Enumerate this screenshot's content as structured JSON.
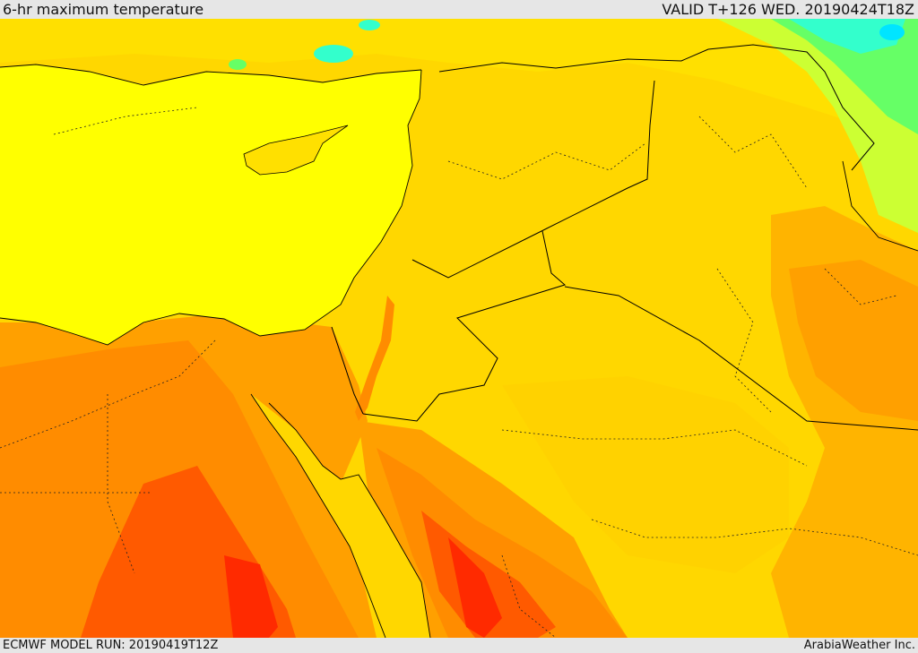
{
  "header": {
    "title": "6-hr maximum temperature",
    "valid_time": "VALID T+126 WED. 20190424T18Z"
  },
  "footer": {
    "model_run": "ECMWF MODEL RUN: 20190419T12Z",
    "credit": "ArabiaWeather Inc."
  },
  "map": {
    "colors": {
      "sea_yellow": "#ffff00",
      "land_light_orange": "#ffd700",
      "land_orange": "#ffb400",
      "land_dark_orange": "#ff8c00",
      "land_red_orange": "#ff5a00",
      "land_red": "#ff2a00",
      "cool_yellow_green": "#ccff33",
      "cool_green": "#66ff66",
      "cool_cyan": "#33ffcc"
    }
  }
}
